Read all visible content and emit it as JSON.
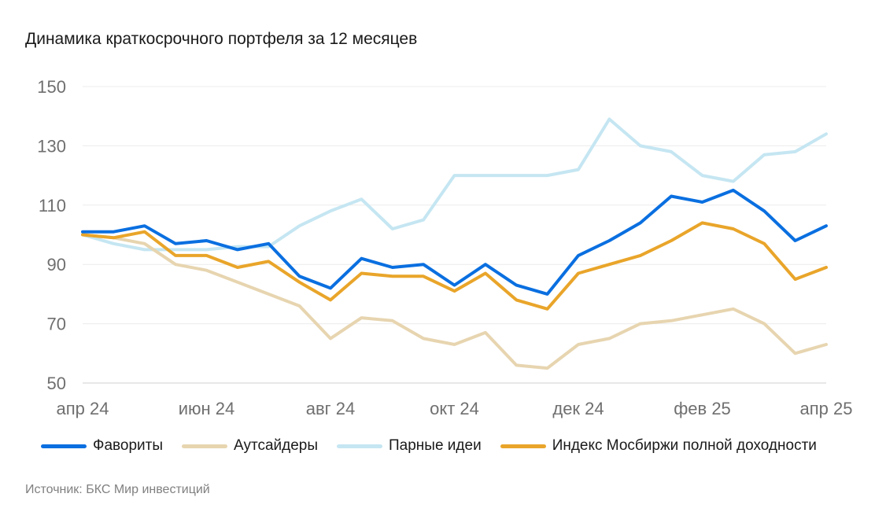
{
  "title": "Динамика краткосрочного портфеля за 12 месяцев",
  "source": "Источник: БКС Мир инвестиций",
  "chart_data": {
    "type": "line",
    "title": "Динамика краткосрочного портфеля за 12 месяцев",
    "xlabel": "",
    "ylabel": "",
    "ylim": [
      50,
      150
    ],
    "yticks": [
      "150",
      "130",
      "110",
      "90",
      "70",
      "50"
    ],
    "xticks": [
      "апр 24",
      "июн 24",
      "авг 24",
      "окт 24",
      "дек 24",
      "фев 25",
      "апр 25"
    ],
    "x": [
      0,
      0.5,
      1,
      1.5,
      2,
      2.5,
      3,
      3.5,
      4,
      4.5,
      5,
      5.5,
      6,
      6.5,
      7,
      7.5,
      8,
      8.5,
      9,
      9.5,
      10,
      10.5,
      11,
      11.5,
      12
    ],
    "grid": true,
    "legend": "bottom",
    "series": [
      {
        "name": "Фавориты",
        "color": "#0a6fe0",
        "values": [
          101,
          101,
          103,
          97,
          98,
          95,
          97,
          86,
          82,
          92,
          89,
          90,
          83,
          90,
          83,
          80,
          93,
          98,
          104,
          113,
          111,
          115,
          108,
          98,
          103
        ]
      },
      {
        "name": "Аутсайдеры",
        "color": "#e7d5b0",
        "values": [
          100,
          99,
          97,
          90,
          88,
          84,
          80,
          76,
          65,
          72,
          71,
          65,
          63,
          67,
          56,
          55,
          63,
          65,
          70,
          71,
          73,
          75,
          70,
          60,
          63
        ]
      },
      {
        "name": "Парные идеи",
        "color": "#c5e6f2",
        "values": [
          100,
          97,
          95,
          95,
          95,
          96,
          96,
          103,
          108,
          112,
          102,
          105,
          120,
          120,
          120,
          120,
          122,
          139,
          130,
          128,
          120,
          118,
          127,
          128,
          134
        ]
      },
      {
        "name": "Индекс Мосбиржи полной доходности",
        "color": "#e9a52a",
        "values": [
          100,
          99,
          101,
          93,
          93,
          89,
          91,
          84,
          78,
          87,
          86,
          86,
          81,
          87,
          78,
          75,
          87,
          90,
          93,
          98,
          104,
          102,
          97,
          85,
          89
        ]
      }
    ]
  }
}
